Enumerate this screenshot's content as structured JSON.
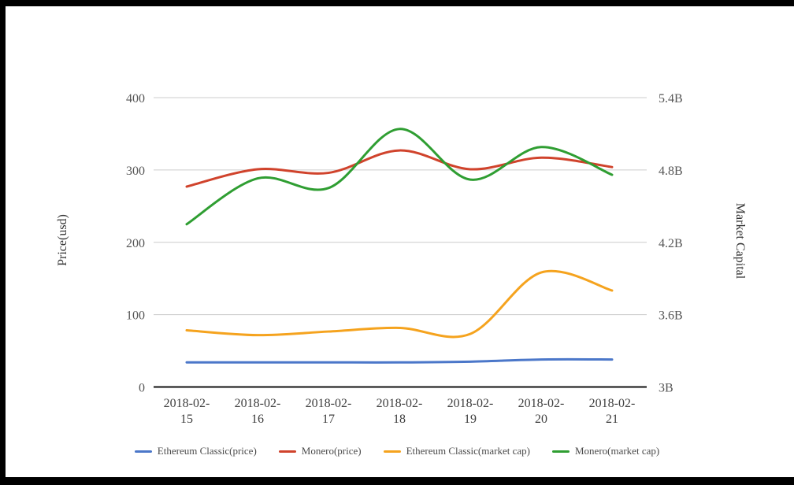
{
  "chart_data": {
    "type": "line",
    "smooth": true,
    "grid": true,
    "grid_color": "#cccccc",
    "baseline_color": "#111111",
    "background_color": "#ffffff",
    "frame_color": "#000000",
    "legend_position": "bottom",
    "x": [
      "2018-02-15",
      "2018-02-16",
      "2018-02-17",
      "2018-02-18",
      "2018-02-19",
      "2018-02-20",
      "2018-02-21"
    ],
    "axes": {
      "left": {
        "title": "Price(usd)",
        "min": 0,
        "max": 400,
        "ticks": [
          0,
          100,
          200,
          300,
          400
        ],
        "tick_labels": [
          "0",
          "100",
          "200",
          "300",
          "400"
        ]
      },
      "right": {
        "title": "Market Capital",
        "min": 3,
        "max": 5.4,
        "ticks": [
          3,
          3.6,
          4.2,
          4.8,
          5.4
        ],
        "tick_labels": [
          "3B",
          "3.6B",
          "4.2B",
          "4.8B",
          "5.4B"
        ]
      }
    },
    "series": [
      {
        "name": "Ethereum Classic(price)",
        "axis": "left",
        "color": "#4b77c9",
        "values": [
          34,
          34,
          34,
          34,
          35,
          38,
          38
        ]
      },
      {
        "name": "Monero(price)",
        "axis": "left",
        "color": "#d0432c",
        "values": [
          277,
          301,
          296,
          327,
          301,
          317,
          304
        ]
      },
      {
        "name": "Ethereum Classic(market cap)",
        "axis": "right",
        "color": "#f5a31e",
        "values": [
          3.47,
          3.43,
          3.46,
          3.49,
          3.44,
          3.95,
          3.8
        ]
      },
      {
        "name": "Monero(market cap)",
        "axis": "right",
        "color": "#2f9e32",
        "values": [
          4.35,
          4.73,
          4.65,
          5.14,
          4.72,
          4.99,
          4.76
        ]
      }
    ]
  }
}
